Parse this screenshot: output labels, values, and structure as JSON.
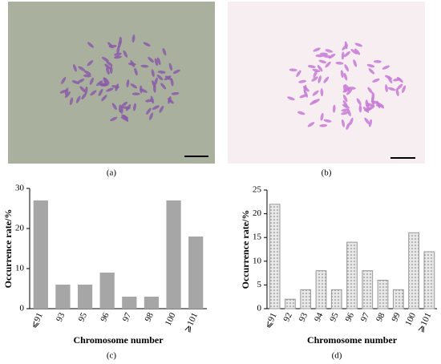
{
  "panel_labels": [
    "(a)",
    "(b)",
    "(c)",
    "(d)"
  ],
  "chart_data": [
    {
      "type": "bar",
      "y_label": "Occurrence rate/%",
      "x_label": "Chromosome number",
      "categories": [
        "⩽91",
        "93",
        "95",
        "96",
        "97",
        "98",
        "100",
        "⩾101"
      ],
      "values": [
        27,
        6,
        6,
        9,
        3,
        3,
        27,
        18
      ],
      "color": "#a6a6a6",
      "fill_pattern": "solid",
      "ylim": [
        0,
        30
      ],
      "yticks": [
        0,
        10,
        20,
        30
      ]
    },
    {
      "type": "bar",
      "y_label": "Occurrence rate/%",
      "x_label": "Chromosome number",
      "categories": [
        "⩽91",
        "92",
        "93",
        "94",
        "95",
        "96",
        "97",
        "98",
        "99",
        "100",
        "⩾101"
      ],
      "values": [
        22,
        2,
        4,
        8,
        4,
        14,
        8,
        6,
        4,
        16,
        12
      ],
      "color": "#d9d9d9",
      "fill_pattern": "dots",
      "ylim": [
        0,
        25
      ],
      "yticks": [
        0,
        5,
        10,
        15,
        20,
        25
      ]
    }
  ]
}
